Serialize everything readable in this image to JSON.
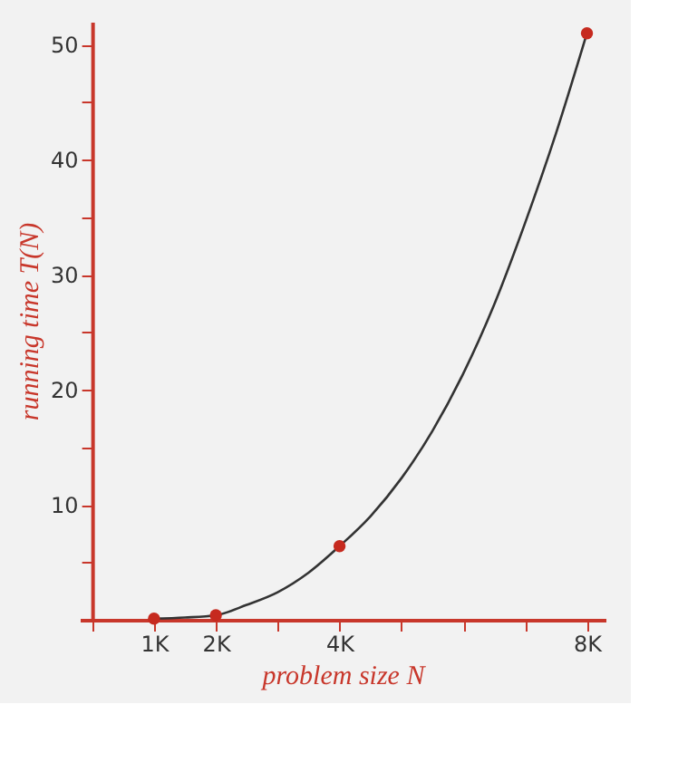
{
  "chart_data": {
    "type": "line",
    "xlabel": "problem size N",
    "ylabel": "running time T(N)",
    "xlim": [
      -0.2,
      8.3
    ],
    "ylim": [
      0,
      52
    ],
    "xticks": [
      {
        "value": 0,
        "label": null
      },
      {
        "value": 1,
        "label": "1K"
      },
      {
        "value": 2,
        "label": "2K"
      },
      {
        "value": 3,
        "label": null
      },
      {
        "value": 4,
        "label": "4K"
      },
      {
        "value": 5,
        "label": null
      },
      {
        "value": 6,
        "label": null
      },
      {
        "value": 7,
        "label": null
      },
      {
        "value": 8,
        "label": "8K"
      }
    ],
    "yticks": [
      {
        "value": 5,
        "label": null
      },
      10,
      {
        "value": 15,
        "label": null
      },
      20,
      {
        "value": 25,
        "label": null
      },
      30,
      {
        "value": 35,
        "label": null
      },
      40,
      {
        "value": 45,
        "label": null
      },
      50
    ],
    "grid": false,
    "series": [
      {
        "color": "#333333",
        "marker": "none",
        "line_style": "solid",
        "x": [
          1,
          1.5,
          2,
          2.5,
          3,
          3.5,
          4,
          4.5,
          5,
          5.5,
          6,
          6.5,
          7,
          7.5,
          8
        ],
        "values": [
          0.1,
          0.2,
          0.4,
          1.3,
          2.4,
          4.1,
          6.4,
          9.0,
          12.3,
          16.4,
          21.4,
          27.4,
          34.5,
          42.3,
          51
        ]
      },
      {
        "type": "scatter",
        "color": "#c62a1f",
        "marker": "circle",
        "x": [
          1,
          2,
          4,
          8
        ],
        "values": [
          0.1,
          0.4,
          6.4,
          51
        ]
      }
    ]
  }
}
